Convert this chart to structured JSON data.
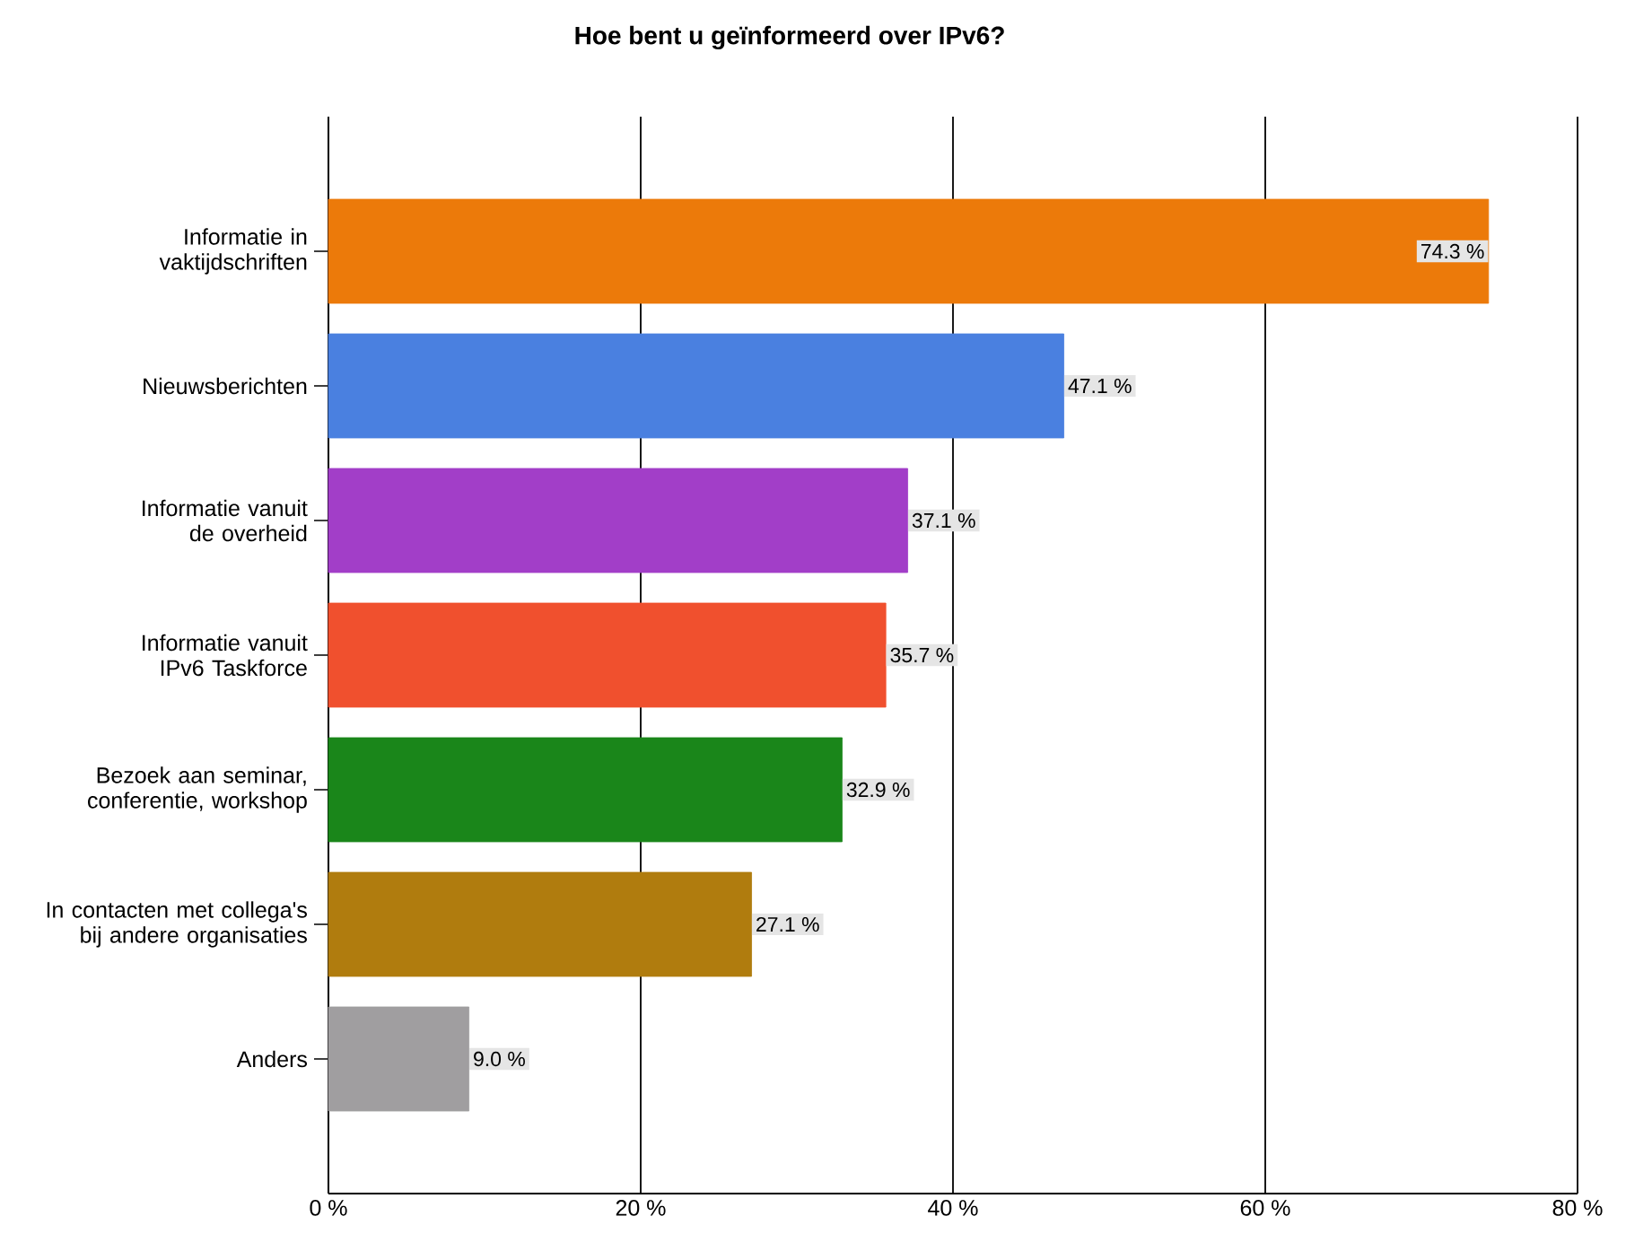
{
  "chart_data": {
    "type": "bar",
    "orientation": "horizontal",
    "title": "Hoe bent u geïnformeerd over IPv6?",
    "categories": [
      "Informatie in vaktijdschriften",
      "Nieuwsberichten",
      "Informatie vanuit de overheid",
      "Informatie vanuit IPv6 Taskforce",
      "Bezoek aan seminar, conferentie, workshop",
      "In contacten met collega's bij andere organisaties",
      "Anders"
    ],
    "values": [
      74.3,
      47.1,
      37.1,
      35.7,
      32.9,
      27.1,
      9.0
    ],
    "colors": [
      "#ec7a0a",
      "#4a80e0",
      "#a23ec8",
      "#f0502e",
      "#1a861a",
      "#b07c0e",
      "#a09ea0"
    ],
    "value_labels": [
      "74.3 %",
      "47.1 %",
      "37.1 %",
      "35.7 %",
      "32.9 %",
      "27.1 %",
      "9.0 %"
    ],
    "xlim": [
      0,
      80
    ],
    "xticks": [
      {
        "value": 0,
        "label": "0 %"
      },
      {
        "value": 20,
        "label": "20 %"
      },
      {
        "value": 40,
        "label": "40 %"
      },
      {
        "value": 60,
        "label": "60 %"
      },
      {
        "value": 80,
        "label": "80 %"
      }
    ],
    "grid": "x"
  }
}
